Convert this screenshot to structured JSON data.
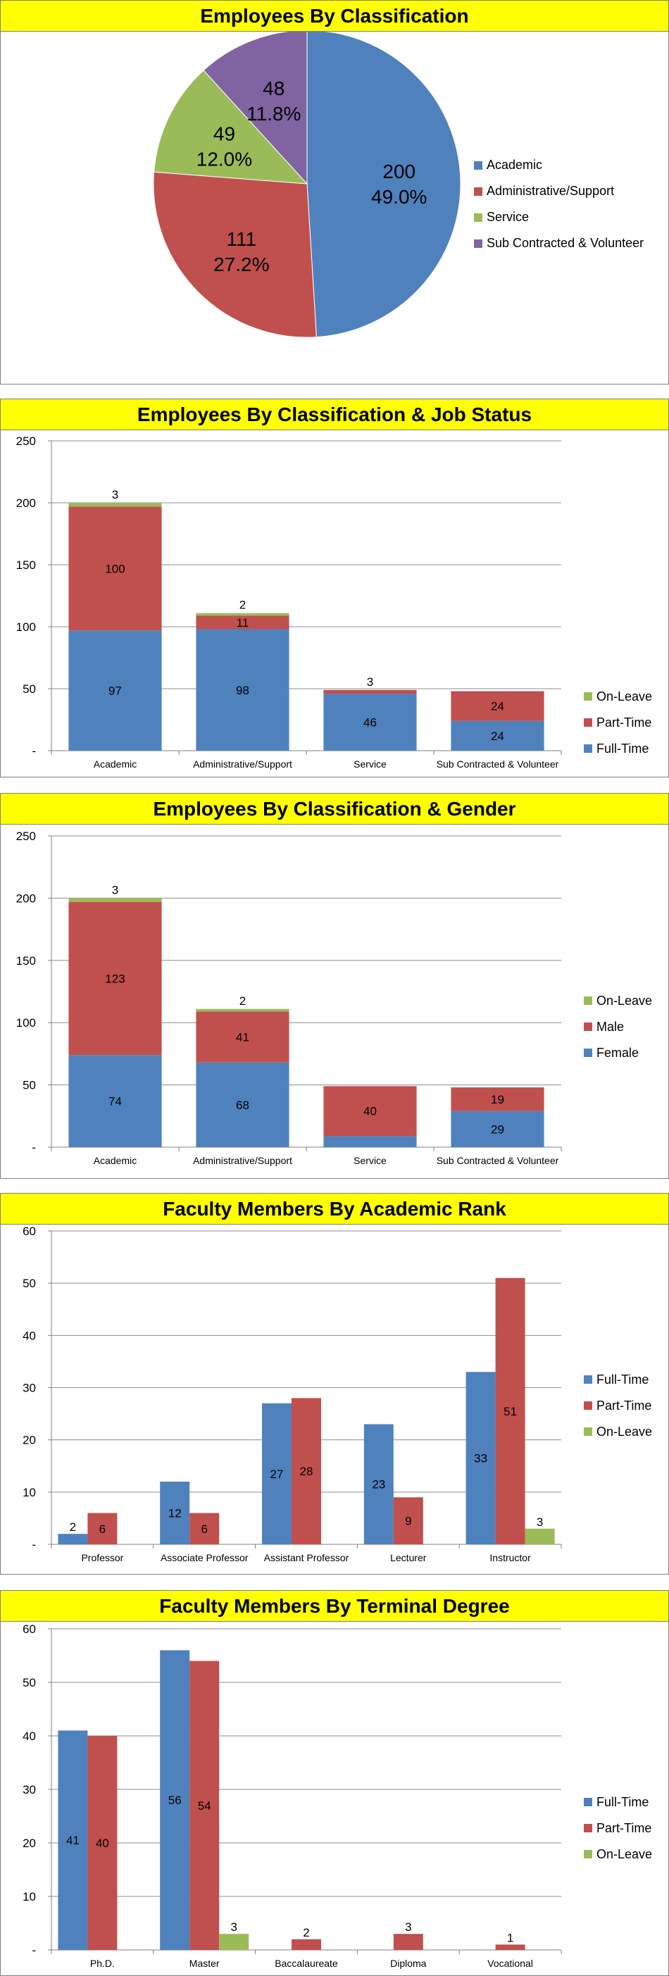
{
  "colors": {
    "blue": "#4f81bd",
    "red": "#c0504d",
    "green": "#9bbb59",
    "purple": "#8064a2",
    "title_bg": "#ffff00"
  },
  "chart_data": [
    {
      "type": "pie",
      "title": "Employees By Classification",
      "legend": "right",
      "slices": [
        {
          "name": "Academic",
          "value": 200,
          "percent": "49.0%",
          "color": "#4f81bd"
        },
        {
          "name": "Administrative/Support",
          "value": 111,
          "percent": "27.2%",
          "color": "#c0504d"
        },
        {
          "name": "Service",
          "value": 49,
          "percent": "12.0%",
          "color": "#9bbb59"
        },
        {
          "name": "Sub Contracted & Volunteer",
          "value": 48,
          "percent": "11.8%",
          "color": "#8064a2"
        }
      ]
    },
    {
      "type": "bar",
      "stacked": true,
      "title": "Employees By Classification & Job Status",
      "ylim": [
        0,
        250
      ],
      "yticks": [
        0,
        50,
        100,
        150,
        200,
        250
      ],
      "zero_label": "-",
      "grid": true,
      "legend": "right",
      "categories": [
        "Academic",
        "Administrative/Support",
        "Service",
        "Sub Contracted & Volunteer"
      ],
      "series": [
        {
          "name": "Full-Time",
          "color": "#4f81bd",
          "values": [
            97,
            98,
            46,
            24
          ],
          "labels": [
            "97",
            "98",
            "46",
            "24"
          ]
        },
        {
          "name": "Part-Time",
          "color": "#c0504d",
          "values": [
            100,
            11,
            3,
            24
          ],
          "labels": [
            "100",
            "11",
            "3",
            "24"
          ]
        },
        {
          "name": "On-Leave",
          "color": "#9bbb59",
          "values": [
            3,
            2,
            0,
            0
          ],
          "labels": [
            "3",
            "2",
            "",
            ""
          ]
        }
      ],
      "legend_order": [
        "On-Leave",
        "Part-Time",
        "Full-Time"
      ]
    },
    {
      "type": "bar",
      "stacked": true,
      "title": "Employees By Classification & Gender",
      "ylim": [
        0,
        250
      ],
      "yticks": [
        0,
        50,
        100,
        150,
        200,
        250
      ],
      "zero_label": "-",
      "grid": true,
      "legend": "right",
      "categories": [
        "Academic",
        "Administrative/Support",
        "Service",
        "Sub Contracted & Volunteer"
      ],
      "series": [
        {
          "name": "Female",
          "color": "#4f81bd",
          "values": [
            74,
            68,
            9,
            29
          ],
          "labels": [
            "74",
            "68",
            "9",
            "29"
          ]
        },
        {
          "name": "Male",
          "color": "#c0504d",
          "values": [
            123,
            41,
            40,
            19
          ],
          "labels": [
            "123",
            "41",
            "40",
            "19"
          ]
        },
        {
          "name": "On-Leave",
          "color": "#9bbb59",
          "values": [
            3,
            2,
            0,
            0
          ],
          "labels": [
            "3",
            "2",
            "",
            ""
          ]
        }
      ],
      "legend_order": [
        "On-Leave",
        "Male",
        "Female"
      ]
    },
    {
      "type": "bar",
      "stacked": false,
      "title": "Faculty Members By Academic Rank",
      "ylim": [
        0,
        60
      ],
      "yticks": [
        0,
        10,
        20,
        30,
        40,
        50,
        60
      ],
      "zero_label": "-",
      "grid": true,
      "legend": "right",
      "categories": [
        "Professor",
        "Associate Professor",
        "Assistant Professor",
        "Lecturer",
        "Instructor"
      ],
      "series": [
        {
          "name": "Full-Time",
          "color": "#4f81bd",
          "values": [
            2,
            12,
            27,
            23,
            33
          ],
          "labels": [
            "2",
            "12",
            "27",
            "23",
            "33"
          ]
        },
        {
          "name": "Part-Time",
          "color": "#c0504d",
          "values": [
            6,
            6,
            28,
            9,
            51
          ],
          "labels": [
            "6",
            "6",
            "28",
            "9",
            "51"
          ]
        },
        {
          "name": "On-Leave",
          "color": "#9bbb59",
          "values": [
            0,
            0,
            0,
            0,
            3
          ],
          "labels": [
            "",
            "",
            "",
            "",
            "3"
          ]
        }
      ],
      "legend_order": [
        "Full-Time",
        "Part-Time",
        "On-Leave"
      ]
    },
    {
      "type": "bar",
      "stacked": false,
      "title": "Faculty Members By Terminal Degree",
      "ylim": [
        0,
        60
      ],
      "yticks": [
        0,
        10,
        20,
        30,
        40,
        50,
        60
      ],
      "zero_label": "-",
      "grid": true,
      "legend": "right",
      "categories": [
        "Ph.D.",
        "Master",
        "Baccalaureate",
        "Diploma",
        "Vocational"
      ],
      "series": [
        {
          "name": "Full-Time",
          "color": "#4f81bd",
          "values": [
            41,
            56,
            0,
            0,
            0
          ],
          "labels": [
            "41",
            "56",
            "",
            "",
            ""
          ]
        },
        {
          "name": "Part-Time",
          "color": "#c0504d",
          "values": [
            40,
            54,
            2,
            3,
            1
          ],
          "labels": [
            "40",
            "54",
            "2",
            "3",
            "1"
          ]
        },
        {
          "name": "On-Leave",
          "color": "#9bbb59",
          "values": [
            0,
            3,
            0,
            0,
            0
          ],
          "labels": [
            "",
            "3",
            "",
            "",
            ""
          ]
        }
      ],
      "legend_order": [
        "Full-Time",
        "Part-Time",
        "On-Leave"
      ]
    }
  ]
}
